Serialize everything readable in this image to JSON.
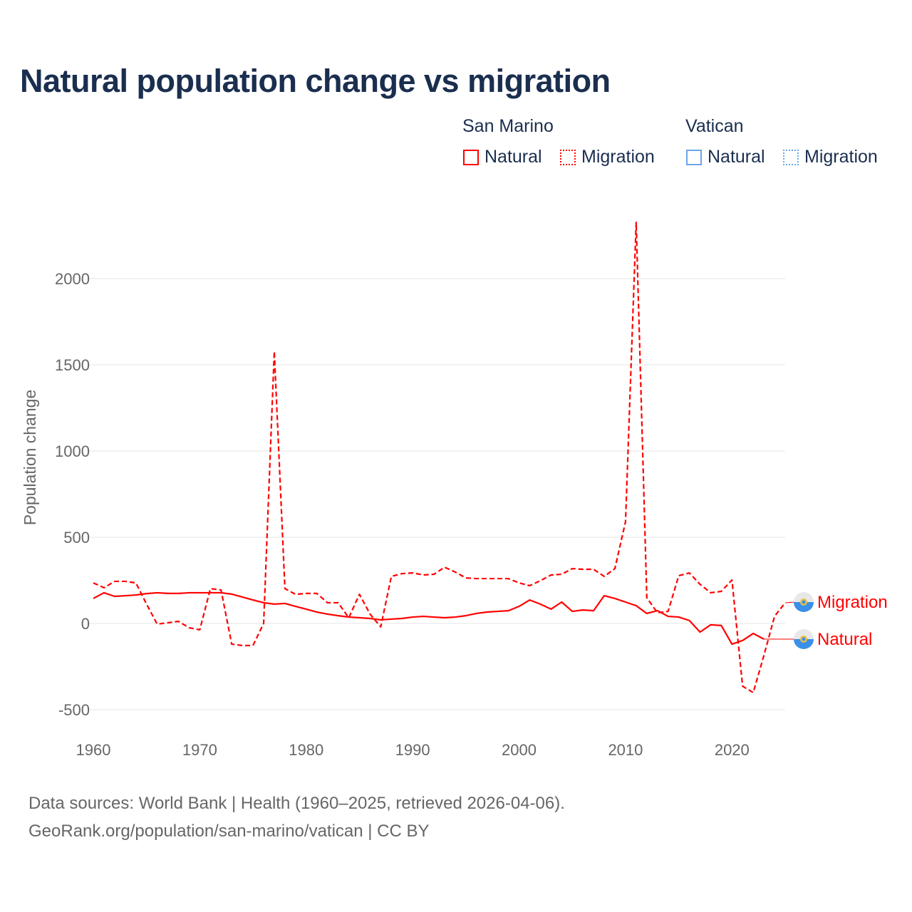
{
  "title": "Natural population change vs migration",
  "legend": {
    "groups": [
      {
        "name": "San Marino",
        "color": "#ff0000",
        "items": [
          "Natural",
          "Migration"
        ]
      },
      {
        "name": "Vatican",
        "color": "#4a90e2",
        "items": [
          "Natural",
          "Migration"
        ]
      }
    ]
  },
  "footer": {
    "line1": "Data sources: World Bank | Health (1960–2025, retrieved 2026-04-06).",
    "line2": "GeoRank.org/population/san-marino/vatican | CC BY"
  },
  "chart_data": {
    "type": "line",
    "title": "Natural population change vs migration",
    "xlabel": "",
    "ylabel": "Population change",
    "xlim": [
      1960,
      2025
    ],
    "ylim": [
      -500,
      2350
    ],
    "x_ticks": [
      1960,
      1970,
      1980,
      1990,
      2000,
      2010,
      2020
    ],
    "y_ticks": [
      -500,
      0,
      500,
      1000,
      1500,
      2000
    ],
    "grid": true,
    "legend_position": "top-right",
    "series": [
      {
        "name": "Natural",
        "country": "San Marino",
        "style": "solid",
        "color": "#ff0000",
        "end_label": "Natural",
        "start_year": 1960,
        "values": [
          145,
          178,
          157,
          161,
          165,
          173,
          178,
          174,
          174,
          178,
          178,
          178,
          178,
          170,
          153,
          136,
          120,
          112,
          116,
          99,
          83,
          66,
          54,
          45,
          37,
          33,
          29,
          21,
          25,
          29,
          37,
          41,
          37,
          33,
          37,
          45,
          58,
          66,
          70,
          74,
          99,
          136,
          112,
          83,
          124,
          70,
          78,
          74,
          161,
          145,
          124,
          103,
          58,
          74,
          41,
          37,
          17,
          -50,
          -8,
          -12,
          -120,
          -99,
          -58,
          -91
        ]
      },
      {
        "name": "Migration",
        "country": "San Marino",
        "style": "dashed",
        "color": "#ff0000",
        "end_label": "Migration",
        "start_year": 1960,
        "values": [
          235,
          207,
          244,
          244,
          235,
          112,
          -4,
          4,
          12,
          -25,
          -37,
          202,
          194,
          -120,
          -128,
          -128,
          0,
          1578,
          202,
          169,
          174,
          174,
          120,
          120,
          33,
          169,
          54,
          -20,
          273,
          289,
          293,
          281,
          285,
          326,
          298,
          264,
          260,
          260,
          260,
          260,
          235,
          219,
          248,
          281,
          285,
          318,
          314,
          314,
          273,
          318,
          590,
          2326,
          149,
          62,
          70,
          277,
          293,
          227,
          178,
          186,
          252,
          -364,
          -401,
          -186,
          41,
          120
        ]
      }
    ]
  }
}
